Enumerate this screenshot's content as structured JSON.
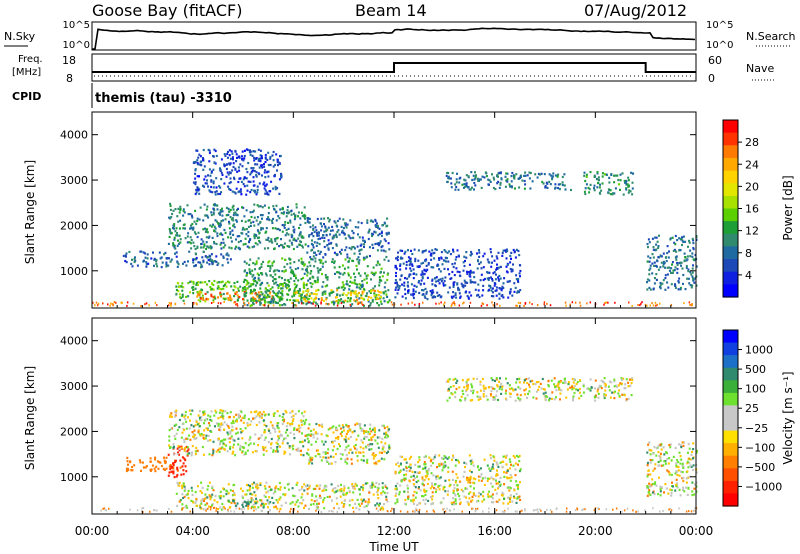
{
  "header": {
    "station": "Goose Bay (fitACF)",
    "beam": "Beam 14",
    "date": "07/Aug/2012"
  },
  "panels": {
    "noise": {
      "left_label": "N.Sky",
      "left_ticks": [
        "10^5",
        "10^0"
      ],
      "right_label": "N.Search",
      "right_ticks": [
        "10^5",
        "10^0"
      ]
    },
    "freq": {
      "left_label_1": "Freq.",
      "left_label_2": "[MHz]",
      "left_ticks": [
        "18",
        "8"
      ],
      "right_label": "Nave",
      "right_ticks": [
        "60",
        "0"
      ]
    },
    "cpid": {
      "label": "CPID",
      "text": "themis (tau)  -3310"
    }
  },
  "power_colorbar": {
    "label": "Power [dB]",
    "ticks": [
      "28",
      "24",
      "20",
      "16",
      "12",
      "8",
      "4"
    ],
    "colors": [
      "#ff0000",
      "#ff3300",
      "#ff7a00",
      "#ffa800",
      "#ffd200",
      "#e2e600",
      "#a8e000",
      "#5ccf00",
      "#1e9e36",
      "#2f8a6e",
      "#1f6aa0",
      "#1c48b8",
      "#1020e0",
      "#0000ff"
    ]
  },
  "velocity_colorbar": {
    "label": "Velocity [m s⁻¹]",
    "ticks": [
      "1000",
      "500",
      "100",
      "25",
      "−25",
      "−100",
      "−500",
      "−1000"
    ],
    "colors": [
      "#0000ff",
      "#1040e0",
      "#1c70c8",
      "#2f8a6e",
      "#3ab03a",
      "#6ee030",
      "#c8c8c8",
      "#c8c8c8",
      "#ffe000",
      "#ffb000",
      "#ff8000",
      "#ff5000",
      "#ff2000",
      "#ff0000"
    ]
  },
  "chart_data": [
    {
      "type": "heatmap",
      "name": "power",
      "ylabel": "Slant Range [km]",
      "xlabel": "Time UT",
      "x_ticks": [
        "00:00",
        "04:00",
        "08:00",
        "12:00",
        "16:00",
        "20:00",
        "00:00"
      ],
      "y_ticks": [
        1000,
        2000,
        3000,
        4000
      ],
      "xlim_hours": [
        0,
        24
      ],
      "ylim_km": [
        180,
        4500
      ],
      "regions": [
        {
          "t": [
            1.2,
            5.5
          ],
          "r": [
            1100,
            1450
          ],
          "level": 8
        },
        {
          "t": [
            3.0,
            8.5
          ],
          "r": [
            1500,
            2500
          ],
          "level": 10
        },
        {
          "t": [
            3.3,
            8.5
          ],
          "r": [
            350,
            800
          ],
          "level": 14
        },
        {
          "t": [
            4.1,
            7.2
          ],
          "r": [
            380,
            560
          ],
          "level": 26
        },
        {
          "t": [
            6.0,
            11.8
          ],
          "r": [
            250,
            1300
          ],
          "level": 12
        },
        {
          "t": [
            8.0,
            11.5
          ],
          "r": [
            350,
            600
          ],
          "level": 22
        },
        {
          "t": [
            8.5,
            11.8
          ],
          "r": [
            1300,
            2200
          ],
          "level": 8
        },
        {
          "t": [
            4.0,
            7.5
          ],
          "r": [
            2700,
            3700
          ],
          "level": 6
        },
        {
          "t": [
            12.0,
            17.0
          ],
          "r": [
            400,
            1500
          ],
          "level": 6
        },
        {
          "t": [
            14.0,
            19.0
          ],
          "r": [
            2800,
            3200
          ],
          "level": 9
        },
        {
          "t": [
            19.5,
            21.5
          ],
          "r": [
            2700,
            3200
          ],
          "level": 11
        },
        {
          "t": [
            22.0,
            24.0
          ],
          "r": [
            600,
            1800
          ],
          "level": 9
        }
      ]
    },
    {
      "type": "heatmap",
      "name": "velocity",
      "ylabel": "Slant Range [km]",
      "xlabel": "Time UT",
      "x_ticks": [
        "00:00",
        "04:00",
        "08:00",
        "12:00",
        "16:00",
        "20:00",
        "00:00"
      ],
      "y_ticks": [
        1000,
        2000,
        3000,
        4000
      ],
      "xlim_hours": [
        0,
        24
      ],
      "ylim_km": [
        180,
        4500
      ],
      "regions": [
        {
          "t": [
            1.3,
            3.5
          ],
          "r": [
            1150,
            1450
          ],
          "vel": -300
        },
        {
          "t": [
            3.0,
            3.8
          ],
          "r": [
            1000,
            1700
          ],
          "vel": -700
        },
        {
          "t": [
            3.0,
            8.5
          ],
          "r": [
            1500,
            2500
          ],
          "vel": 0
        },
        {
          "t": [
            3.3,
            11.8
          ],
          "r": [
            300,
            900
          ],
          "vel": 0
        },
        {
          "t": [
            5.5,
            7.0
          ],
          "r": [
            350,
            550
          ],
          "vel": 120
        },
        {
          "t": [
            8.5,
            11.8
          ],
          "r": [
            1300,
            2200
          ],
          "vel": 0
        },
        {
          "t": [
            12.0,
            17.0
          ],
          "r": [
            400,
            1500
          ],
          "vel": 0
        },
        {
          "t": [
            14.0,
            21.5
          ],
          "r": [
            2700,
            3200
          ],
          "vel": 0
        },
        {
          "t": [
            22.0,
            24.0
          ],
          "r": [
            600,
            1800
          ],
          "vel": 0
        }
      ]
    }
  ]
}
